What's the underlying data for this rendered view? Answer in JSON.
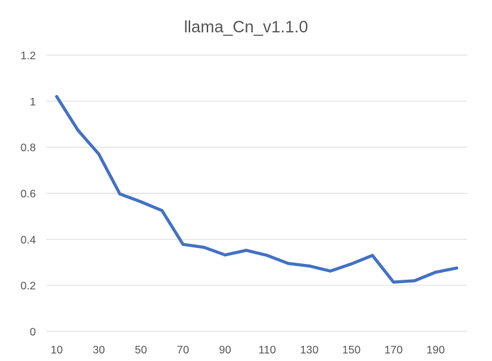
{
  "chart_data": {
    "type": "line",
    "title": "llama_Cn_v1.1.0",
    "xlabel": "",
    "ylabel": "",
    "ylim": [
      0,
      1.2
    ],
    "y_ticks": [
      0,
      0.2,
      0.4,
      0.6,
      0.8,
      1,
      1.2
    ],
    "y_tick_labels": [
      "0",
      "0.2",
      "0.4",
      "0.6",
      "0.8",
      "1",
      "1.2"
    ],
    "categories": [
      10,
      20,
      30,
      40,
      50,
      60,
      70,
      80,
      90,
      100,
      110,
      120,
      130,
      140,
      150,
      160,
      170,
      180,
      190,
      200
    ],
    "x_tick_labels": [
      "10",
      "30",
      "50",
      "70",
      "90",
      "110",
      "130",
      "150",
      "170",
      "190"
    ],
    "series": [
      {
        "color": "#4472c4",
        "values": [
          1.02,
          0.875,
          0.77,
          0.597,
          0.563,
          0.525,
          0.378,
          0.365,
          0.332,
          0.352,
          0.33,
          0.295,
          0.284,
          0.262,
          0.293,
          0.33,
          0.214,
          0.22,
          0.257,
          0.275
        ]
      }
    ],
    "grid": true,
    "legend": "none"
  }
}
